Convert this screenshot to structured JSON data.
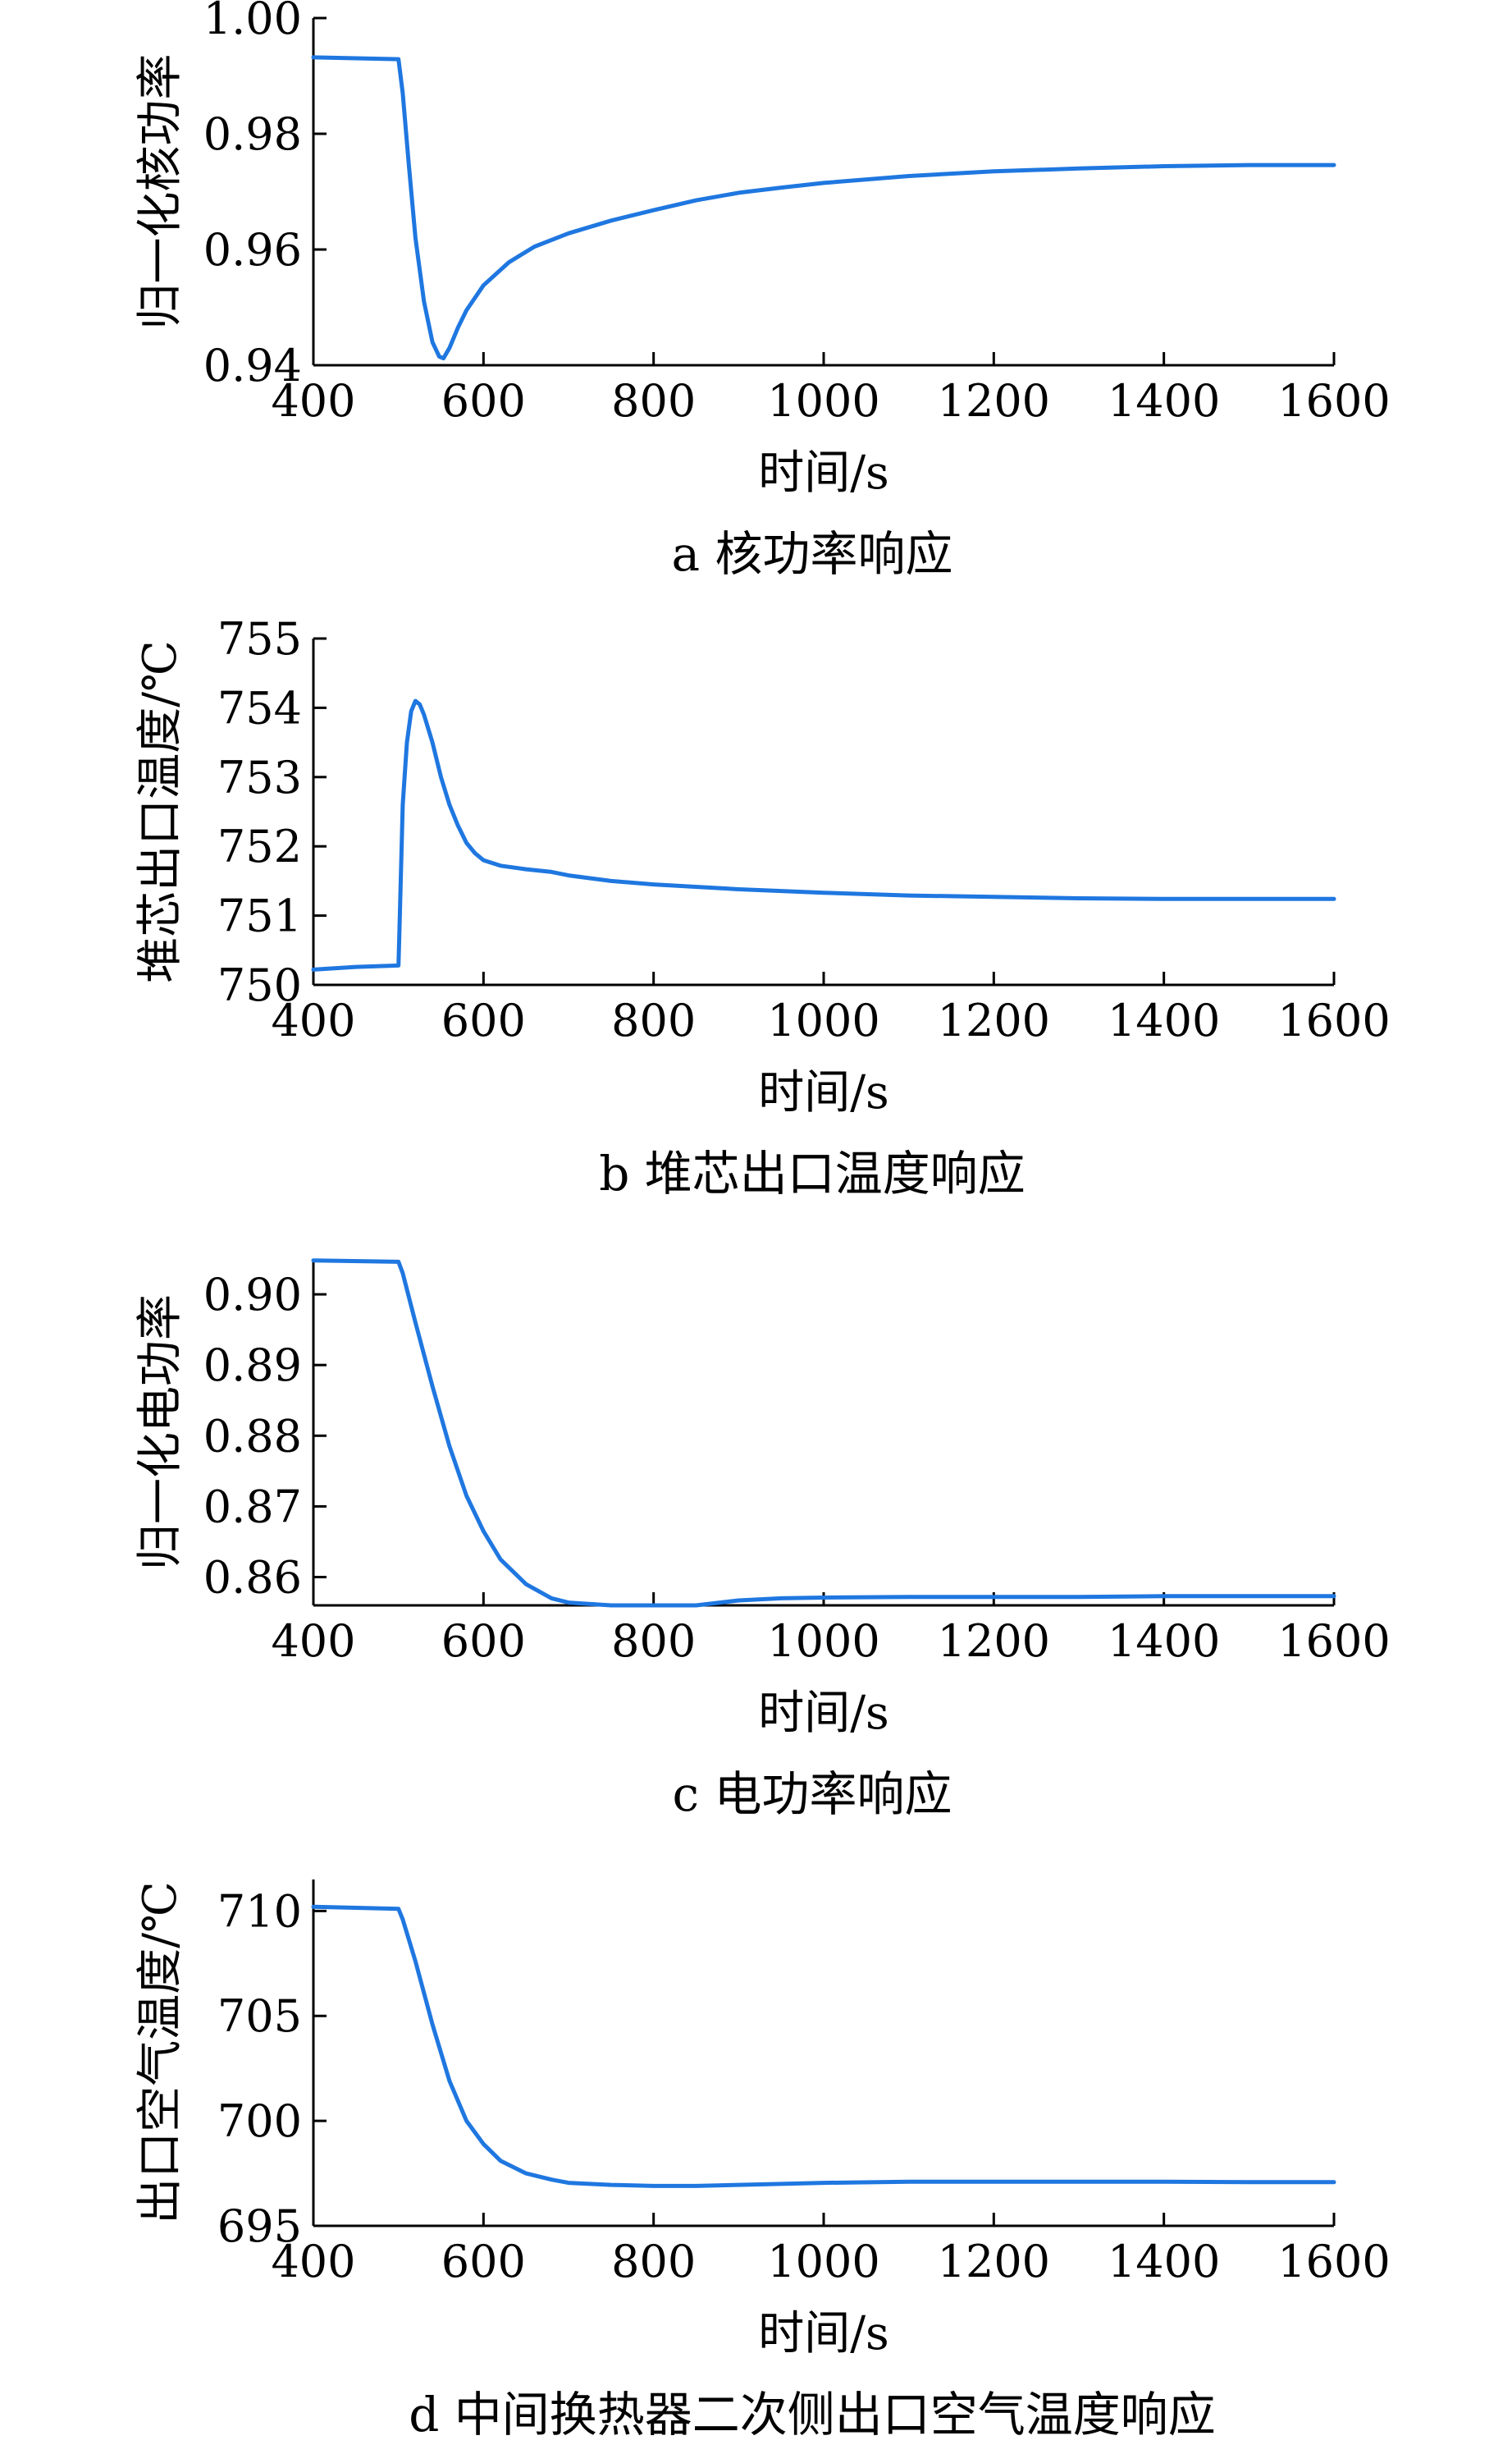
{
  "colors": {
    "line": "#1f77e0",
    "axis": "#000000",
    "background": "#ffffff"
  },
  "chart_data": [
    {
      "type": "line",
      "caption": "a  核功率响应",
      "xlabel": "时间/s",
      "ylabel": "归一化核功率",
      "xlim": [
        400,
        1600
      ],
      "ylim": [
        0.94,
        1.0
      ],
      "xticks": [
        "400",
        "600",
        "800",
        "1000",
        "1200",
        "1400",
        "1600"
      ],
      "yticks": [
        "0.94",
        "0.96",
        "0.98",
        "1.00"
      ],
      "grid": false,
      "series": [
        {
          "x": [
            400,
            500,
            505,
            512,
            520,
            530,
            540,
            548,
            553,
            560,
            570,
            580,
            600,
            630,
            660,
            700,
            750,
            800,
            850,
            900,
            950,
            1000,
            1100,
            1200,
            1300,
            1400,
            1500,
            1600
          ],
          "y": [
            0.9932,
            0.9929,
            0.987,
            0.975,
            0.962,
            0.951,
            0.944,
            0.9415,
            0.9412,
            0.943,
            0.9465,
            0.9495,
            0.9538,
            0.9578,
            0.9605,
            0.9628,
            0.965,
            0.9668,
            0.9685,
            0.9698,
            0.9707,
            0.9715,
            0.9727,
            0.9735,
            0.974,
            0.9744,
            0.9746,
            0.9746
          ]
        }
      ]
    },
    {
      "type": "line",
      "caption": "b  堆芯出口温度响应",
      "xlabel": "时间/s",
      "ylabel": "堆芯出口温度/℃",
      "xlim": [
        400,
        1600
      ],
      "ylim": [
        750,
        755
      ],
      "xticks": [
        "400",
        "600",
        "800",
        "1000",
        "1200",
        "1400",
        "1600"
      ],
      "yticks": [
        "750",
        "751",
        "752",
        "753",
        "754",
        "755"
      ],
      "grid": false,
      "series": [
        {
          "x": [
            400,
            450,
            500,
            501,
            505,
            510,
            515,
            520,
            525,
            530,
            540,
            550,
            560,
            570,
            580,
            590,
            600,
            620,
            650,
            680,
            700,
            750,
            800,
            900,
            1000,
            1100,
            1200,
            1300,
            1400,
            1500,
            1600
          ],
          "y": [
            750.22,
            750.26,
            750.28,
            750.7,
            752.6,
            753.5,
            753.95,
            754.1,
            754.05,
            753.9,
            753.5,
            753.0,
            752.6,
            752.3,
            752.05,
            751.9,
            751.8,
            751.72,
            751.67,
            751.63,
            751.58,
            751.5,
            751.45,
            751.38,
            751.33,
            751.29,
            751.27,
            751.25,
            751.24,
            751.24,
            751.24
          ]
        }
      ]
    },
    {
      "type": "line",
      "caption": "c  电功率响应",
      "xlabel": "时间/s",
      "ylabel": "归一化电功率",
      "xlim": [
        400,
        1600
      ],
      "ylim": [
        0.856,
        0.905
      ],
      "xticks": [
        "400",
        "600",
        "800",
        "1000",
        "1200",
        "1400",
        "1600"
      ],
      "yticks": [
        "0.86",
        "0.87",
        "0.88",
        "0.89",
        "0.90"
      ],
      "grid": false,
      "series": [
        {
          "x": [
            400,
            500,
            505,
            520,
            540,
            560,
            580,
            600,
            620,
            650,
            680,
            700,
            750,
            800,
            850,
            900,
            950,
            1000,
            1100,
            1200,
            1300,
            1400,
            1500,
            1600
          ],
          "y": [
            0.9048,
            0.9046,
            0.903,
            0.896,
            0.887,
            0.8785,
            0.8715,
            0.8665,
            0.8625,
            0.859,
            0.857,
            0.8564,
            0.856,
            0.856,
            0.856,
            0.8567,
            0.857,
            0.8571,
            0.8572,
            0.8572,
            0.8572,
            0.8573,
            0.8573,
            0.8573
          ]
        }
      ]
    },
    {
      "type": "line",
      "caption": "d  中间换热器二次侧出口空气温度响应",
      "xlabel": "时间/s",
      "ylabel": "出口空气温度/℃",
      "xlim": [
        400,
        1600
      ],
      "ylim": [
        695,
        711.5
      ],
      "xticks": [
        "400",
        "600",
        "800",
        "1000",
        "1200",
        "1400",
        "1600"
      ],
      "yticks": [
        "695",
        "700",
        "705",
        "710"
      ],
      "grid": false,
      "series": [
        {
          "x": [
            400,
            500,
            505,
            520,
            540,
            560,
            580,
            600,
            620,
            650,
            680,
            700,
            750,
            800,
            850,
            900,
            1000,
            1100,
            1200,
            1300,
            1400,
            1500,
            1600
          ],
          "y": [
            710.2,
            710.1,
            709.6,
            707.6,
            704.6,
            701.9,
            700.0,
            698.9,
            698.1,
            697.5,
            697.2,
            697.05,
            696.95,
            696.9,
            696.9,
            696.95,
            697.05,
            697.1,
            697.1,
            697.1,
            697.1,
            697.08,
            697.08
          ]
        }
      ]
    }
  ]
}
